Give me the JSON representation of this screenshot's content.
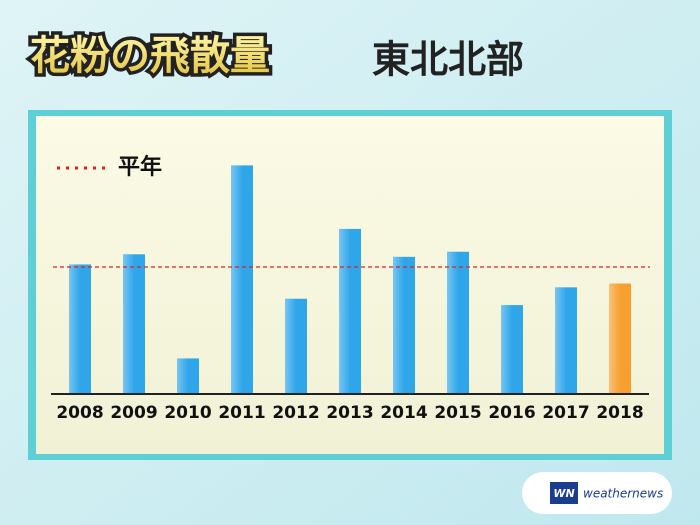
{
  "chart_data": {
    "type": "bar",
    "title": "花粉の飛散量",
    "subtitle": "東北北部",
    "categories": [
      "2008",
      "2009",
      "2010",
      "2011",
      "2012",
      "2013",
      "2014",
      "2015",
      "2016",
      "2017",
      "2018"
    ],
    "values": [
      102,
      110,
      28,
      180,
      75,
      130,
      108,
      112,
      70,
      84,
      87
    ],
    "colors": [
      "#2fa6ea",
      "#2fa6ea",
      "#2fa6ea",
      "#2fa6ea",
      "#2fa6ea",
      "#2fa6ea",
      "#2fa6ea",
      "#2fa6ea",
      "#2fa6ea",
      "#2fa6ea",
      "#f7a030"
    ],
    "ylim": [
      0,
      200
    ],
    "reference": {
      "label": "平年",
      "value": 100,
      "color": "#e02020"
    }
  },
  "logo": {
    "mark": "WN",
    "text": "weathernews"
  }
}
